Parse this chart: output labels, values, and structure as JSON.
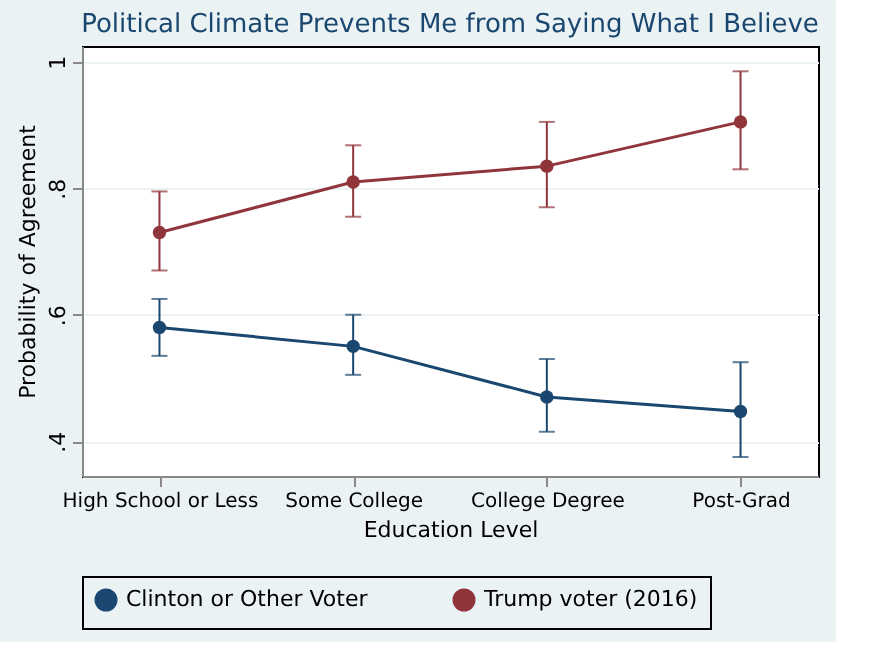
{
  "chart_data": {
    "type": "line",
    "title": "Political Climate Prevents Me from Saying What I Believe",
    "xlabel": "Education Level",
    "ylabel": "Probability of Agreement",
    "categories": [
      "High School or Less",
      "Some College",
      "College Degree",
      "Post-Grad"
    ],
    "series": [
      {
        "name": "Clinton or Other Voter",
        "color": "#1a476f",
        "values": [
          0.58,
          0.55,
          0.47,
          0.447
        ],
        "errors": [
          [
            0.535,
            0.625
          ],
          [
            0.505,
            0.6
          ],
          [
            0.415,
            0.53
          ],
          [
            0.375,
            0.525
          ]
        ]
      },
      {
        "name": "Trump voter (2016)",
        "color": "#90353b",
        "values": [
          0.73,
          0.81,
          0.835,
          0.905
        ],
        "errors": [
          [
            0.67,
            0.795
          ],
          [
            0.755,
            0.868
          ],
          [
            0.77,
            0.905
          ],
          [
            0.83,
            0.985
          ]
        ]
      }
    ],
    "ylim": [
      0.345,
      1.025
    ],
    "yticks": [
      {
        "value": 0.4,
        "label": ".4"
      },
      {
        "value": 0.6,
        "label": ".6"
      },
      {
        "value": 0.8,
        "label": ".8"
      },
      {
        "value": 1,
        "label": "1"
      }
    ],
    "grid": "y",
    "legend": "bottom",
    "marker": "circle",
    "line_style": "solid"
  }
}
